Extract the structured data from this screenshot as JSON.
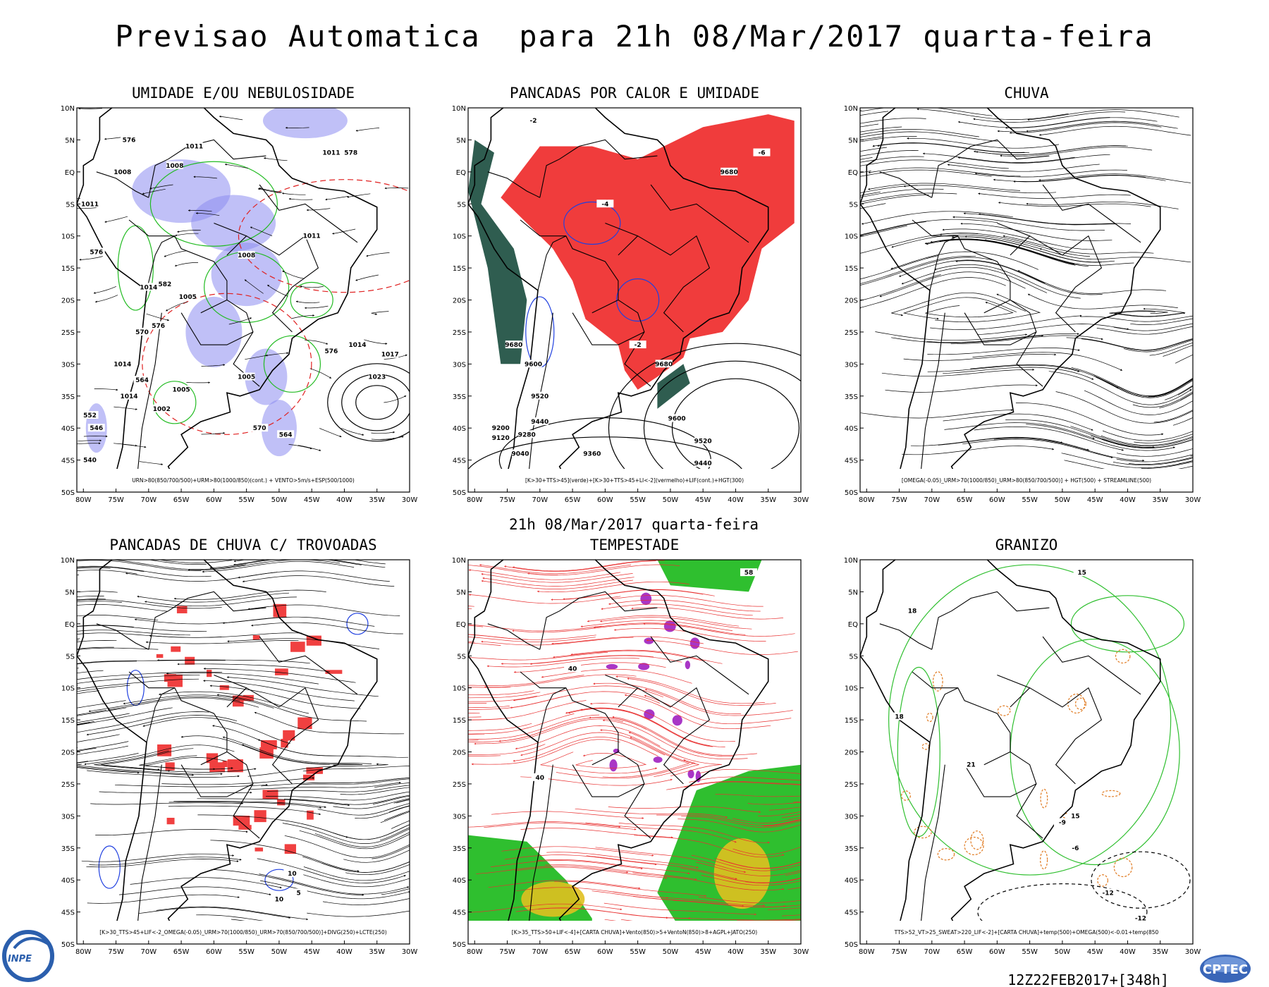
{
  "header": {
    "title": "Previsao Automatica  para 21h 08/Mar/2017 quarta-feira",
    "mid_title": "21h 08/Mar/2017 quarta-feira"
  },
  "axes": {
    "lat_labels": [
      "10N",
      "5N",
      "EQ",
      "5S",
      "10S",
      "15S",
      "20S",
      "25S",
      "30S",
      "35S",
      "40S",
      "45S",
      "50S"
    ],
    "lon_labels": [
      "80W",
      "75W",
      "70W",
      "65W",
      "60W",
      "55W",
      "50W",
      "45W",
      "40W",
      "35W",
      "30W"
    ]
  },
  "panels": [
    {
      "title": "UMIDADE E/OU NEBULOSIDADE",
      "caption": "URN>80(850/700/500)+URM>80(1000/850)(cont.) + VENTO>5m/s+ESP(500/1000)",
      "contour_labels": [
        "1008",
        "1011",
        "1011",
        "578",
        "576",
        "1008",
        "1011",
        "576",
        "1008",
        "1011",
        "1014",
        "582",
        "1005",
        "570",
        "576",
        "1014",
        "1005",
        "1005",
        "1014",
        "1002",
        "564",
        "576",
        "1014",
        "1017",
        "1023",
        "570",
        "564",
        "552",
        "546",
        "540"
      ]
    },
    {
      "title": "PANCADAS POR CALOR E UMIDADE",
      "caption": "[K>30+TTS>45](verde)+[K>30+TTS>45+LI<-2](vermelho)+LIF(cont.)+HGT(300)",
      "contour_labels": [
        "-6",
        "-2",
        "9680",
        "9680",
        "9600",
        "9520",
        "9440",
        "9360",
        "9280",
        "9200",
        "9120",
        "9040",
        "9680",
        "9600",
        "9520",
        "9440",
        "-4",
        "-2"
      ]
    },
    {
      "title": "CHUVA",
      "caption": "[OMEGA(-0.05)_URM>70(1000/850)_URM>80(850/700/500)] + HGT(500) + STREAMLINE(500)",
      "contour_labels": []
    },
    {
      "title": "PANCADAS DE CHUVA C/ TROVOADAS",
      "caption": "[K>30_TTS>45+LIF<-2_OMEGA(-0.05)_URM>70(1000/850)_URM>70(850/700/500)]+DIVG(250)+LCTE(250)",
      "contour_labels": [
        "10",
        "5",
        "10"
      ]
    },
    {
      "title": "TEMPESTADE",
      "caption": "[K>35_TTS>50+LIF<-4]+[CARTA CHUVA]+Vento(850)>5+VentoN(850)>8+AGPL+JATO(250)",
      "contour_labels": [
        "58",
        "40",
        "40"
      ]
    },
    {
      "title": "GRANIZO",
      "caption": "TTS>52_VT>25_SWEAT>220_LIF<-2]+[CARTA CHUVA]+temp(500)+OMEGA(500)<-0.01+temp(850",
      "contour_labels": [
        "18",
        "15",
        "18",
        "21",
        "15",
        "-6",
        "-12",
        "-9",
        "-12"
      ]
    }
  ],
  "footer": {
    "run": "12Z22FEB2017+[348h]",
    "logo_left": "INPE",
    "logo_right": "CPTEC"
  }
}
